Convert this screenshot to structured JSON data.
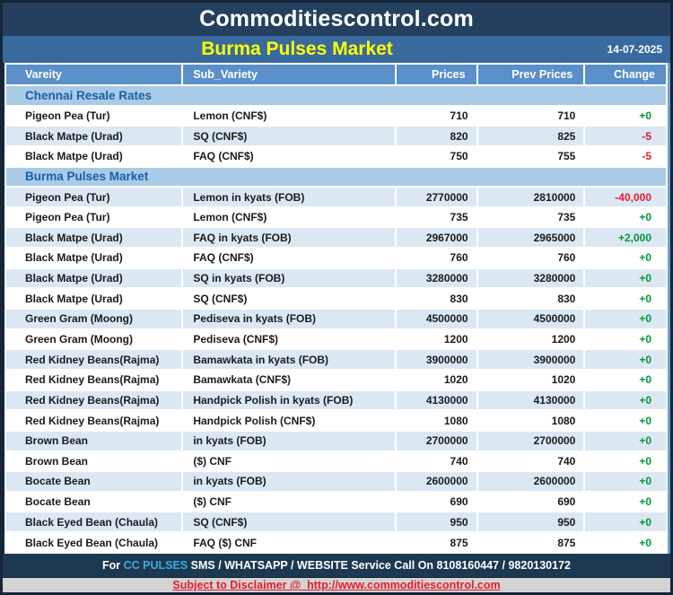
{
  "header": {
    "site_title": "Commoditiescontrol.com",
    "report_title": "Burma Pulses Market",
    "date": "14-07-2025"
  },
  "columns": [
    "Vareity",
    "Sub_Variety",
    "Prices",
    "Prev Prices",
    "Change"
  ],
  "sections": [
    {
      "title": "Chennai Resale Rates",
      "rows": [
        {
          "variety": "Pigeon Pea (Tur)",
          "sub_variety": "Lemon (CNF$)",
          "price": "710",
          "prev_price": "710",
          "change": "+0"
        },
        {
          "variety": "Black Matpe (Urad)",
          "sub_variety": "SQ (CNF$)",
          "price": "820",
          "prev_price": "825",
          "change": "-5"
        },
        {
          "variety": "Black Matpe (Urad)",
          "sub_variety": "FAQ (CNF$)",
          "price": "750",
          "prev_price": "755",
          "change": "-5"
        }
      ]
    },
    {
      "title": "Burma Pulses Market",
      "rows": [
        {
          "variety": "Pigeon Pea (Tur)",
          "sub_variety": "Lemon in kyats (FOB)",
          "price": "2770000",
          "prev_price": "2810000",
          "change": "-40,000"
        },
        {
          "variety": "Pigeon Pea (Tur)",
          "sub_variety": "Lemon (CNF$)",
          "price": "735",
          "prev_price": "735",
          "change": "+0"
        },
        {
          "variety": "Black Matpe (Urad)",
          "sub_variety": "FAQ in kyats (FOB)",
          "price": "2967000",
          "prev_price": "2965000",
          "change": "+2,000"
        },
        {
          "variety": "Black Matpe (Urad)",
          "sub_variety": "FAQ (CNF$)",
          "price": "760",
          "prev_price": "760",
          "change": "+0"
        },
        {
          "variety": "Black Matpe (Urad)",
          "sub_variety": "SQ in kyats (FOB)",
          "price": "3280000",
          "prev_price": "3280000",
          "change": "+0"
        },
        {
          "variety": "Black Matpe (Urad)",
          "sub_variety": "SQ (CNF$)",
          "price": "830",
          "prev_price": "830",
          "change": "+0"
        },
        {
          "variety": "Green Gram (Moong)",
          "sub_variety": "Pediseva in kyats (FOB)",
          "price": "4500000",
          "prev_price": "4500000",
          "change": "+0"
        },
        {
          "variety": "Green Gram (Moong)",
          "sub_variety": "Pediseva (CNF$)",
          "price": "1200",
          "prev_price": "1200",
          "change": "+0"
        },
        {
          "variety": "Red Kidney Beans(Rajma)",
          "sub_variety": "Bamawkata in kyats (FOB)",
          "price": "3900000",
          "prev_price": "3900000",
          "change": "+0"
        },
        {
          "variety": "Red Kidney Beans(Rajma)",
          "sub_variety": "Bamawkata (CNF$)",
          "price": "1020",
          "prev_price": "1020",
          "change": "+0"
        },
        {
          "variety": "Red Kidney Beans(Rajma)",
          "sub_variety": "Handpick Polish in kyats (FOB)",
          "price": "4130000",
          "prev_price": "4130000",
          "change": "+0"
        },
        {
          "variety": "Red Kidney Beans(Rajma)",
          "sub_variety": "Handpick Polish (CNF$)",
          "price": "1080",
          "prev_price": "1080",
          "change": "+0"
        },
        {
          "variety": "Brown Bean",
          "sub_variety": "in kyats (FOB)",
          "price": "2700000",
          "prev_price": "2700000",
          "change": "+0"
        },
        {
          "variety": "Brown Bean",
          "sub_variety": "($) CNF",
          "price": "740",
          "prev_price": "740",
          "change": "+0"
        },
        {
          "variety": "Bocate Bean",
          "sub_variety": "in kyats (FOB)",
          "price": "2600000",
          "prev_price": "2600000",
          "change": "+0"
        },
        {
          "variety": "Bocate Bean",
          "sub_variety": "($) CNF",
          "price": "690",
          "prev_price": "690",
          "change": "+0"
        },
        {
          "variety": "Black Eyed Bean (Chaula)",
          "sub_variety": "SQ (CNF$)",
          "price": "950",
          "prev_price": "950",
          "change": "+0"
        },
        {
          "variety": "Black Eyed Bean (Chaula)",
          "sub_variety": "FAQ ($) CNF",
          "price": "875",
          "prev_price": "875",
          "change": "+0"
        }
      ]
    }
  ],
  "footer": {
    "prefix": "For ",
    "highlight": "CC PULSES",
    "rest": " SMS / WHATSAPP / WEBSITE Service Call On 8108160447 / 9820130172"
  },
  "disclaimer": {
    "label": "Subject to Disclaimer @  ",
    "url": "http://www.commoditiescontrol.com"
  },
  "colors": {
    "header_bg": "#24405e",
    "title_bar_bg": "#386a9d",
    "title_text": "#ffff00",
    "column_header_bg": "#5b8fc9",
    "section_bg": "#a9cbe7",
    "section_text": "#1a5fa6",
    "row_shade": "#dbe8f4",
    "positive_change": "#009933",
    "negative_change": "#e8192c",
    "footer_bg": "#1d3851",
    "footer_highlight": "#3fa9dc",
    "disclaimer_bg": "#d3d3d3",
    "disclaimer_text": "#e8192c"
  }
}
